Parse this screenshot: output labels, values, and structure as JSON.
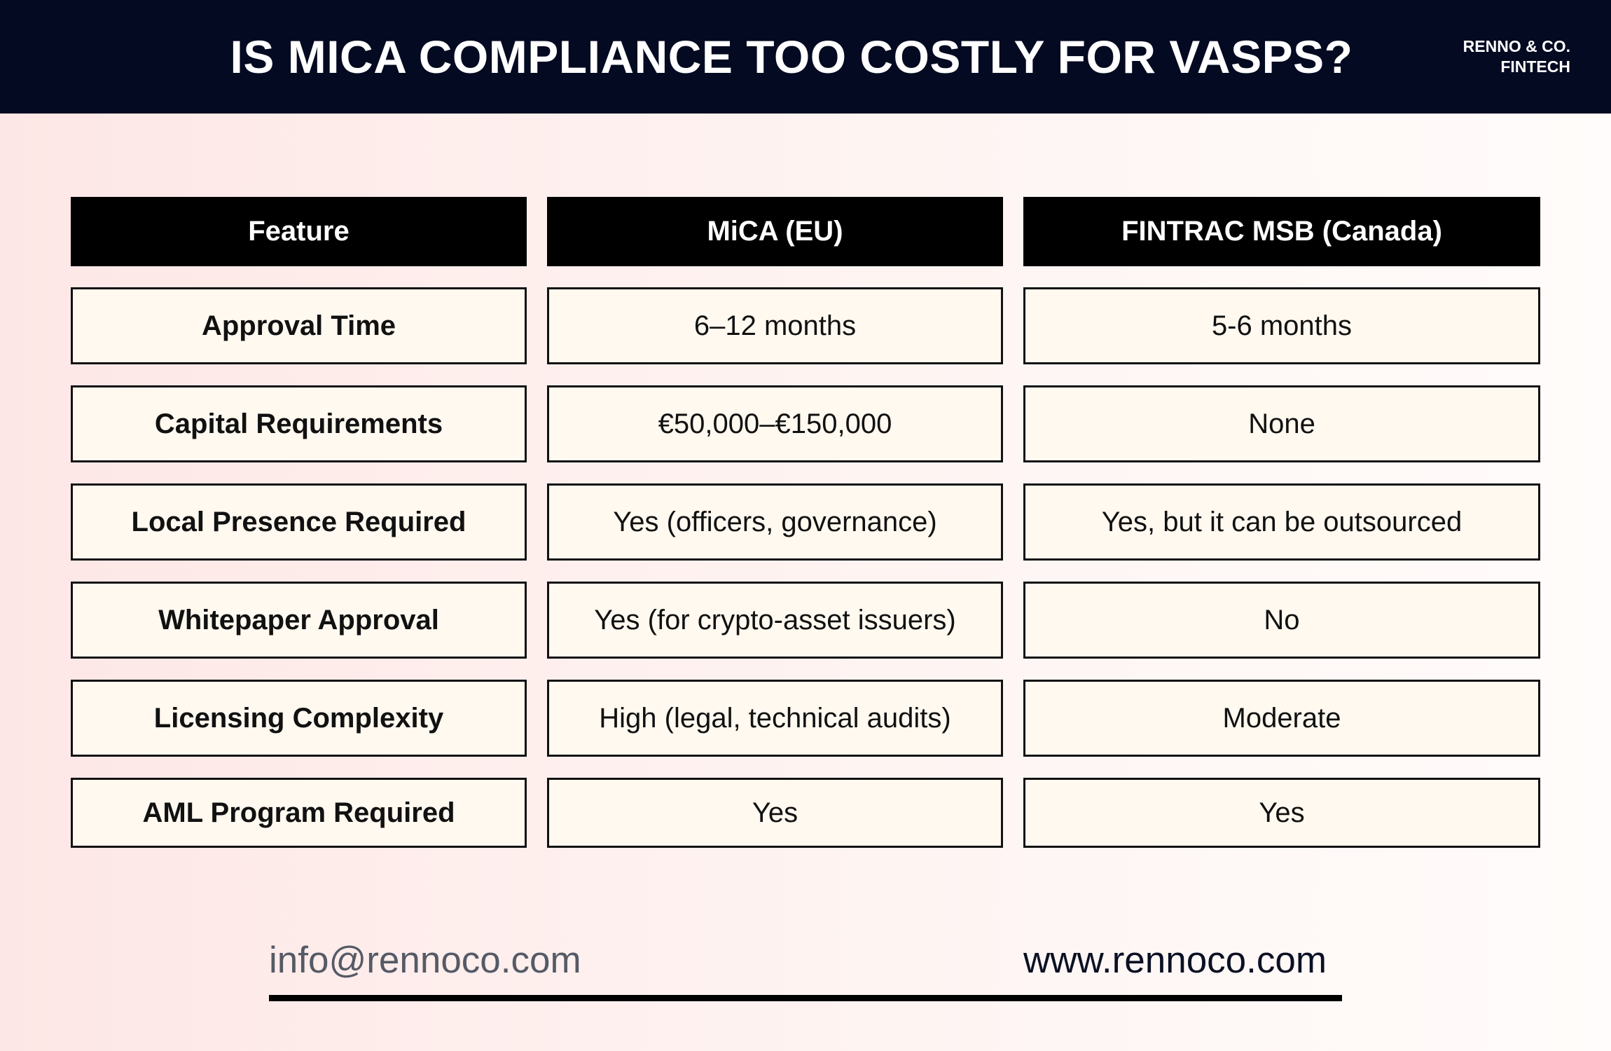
{
  "header": {
    "title": "IS MICA COMPLIANCE TOO COSTLY FOR VASPS?",
    "brand_line1": "RENNO & CO.",
    "brand_line2": "FINTECH"
  },
  "table": {
    "columns": [
      "Feature",
      "MiCA (EU)",
      "FINTRAC MSB (Canada)"
    ],
    "rows": [
      [
        "Approval Time",
        "6–12 months",
        "5-6 months"
      ],
      [
        "Capital Requirements",
        "€50,000–€150,000",
        "None"
      ],
      [
        "Local Presence Required",
        "Yes (officers, governance)",
        "Yes, but it can be outsourced"
      ],
      [
        "Whitepaper Approval",
        "Yes (for crypto-asset issuers)",
        "No"
      ],
      [
        "Licensing Complexity",
        "High (legal, technical audits)",
        "Moderate"
      ],
      [
        "AML Program Required",
        "Yes",
        "Yes"
      ]
    ]
  },
  "footer": {
    "email": "info@rennoco.com",
    "website": "www.rennoco.com"
  }
}
